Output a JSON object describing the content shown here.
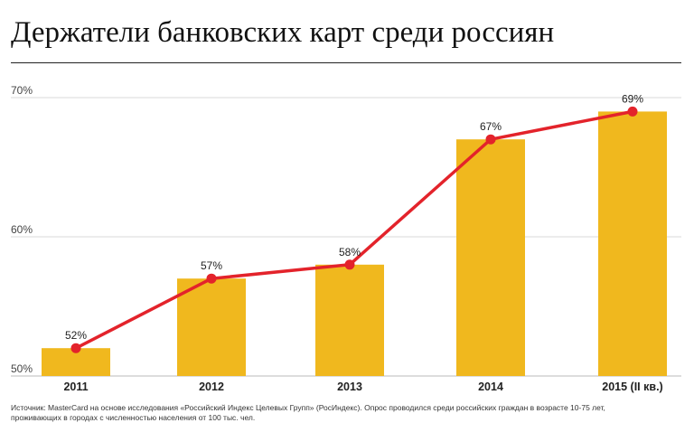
{
  "title": "Держатели банковских карт среди россиян",
  "footnote": {
    "line1": "Источник: MasterCard на основе исследования «Российский Индекс Целевых Групп» (РосИндекс). Опрос проводился среди российских граждан в возрасте 10-75 лет,",
    "line2": "проживающих в городах с численностью населения от 100 тыс. чел."
  },
  "chart_data": {
    "type": "bar+line",
    "title": "Держатели банковских карт среди россиян",
    "categories": [
      "2011",
      "2012",
      "2013",
      "2014",
      "2015 (II кв.)"
    ],
    "values": [
      52,
      57,
      58,
      67,
      69
    ],
    "data_labels": [
      "52%",
      "57%",
      "58%",
      "67%",
      "69%"
    ],
    "ylim": [
      50,
      70
    ],
    "yticks": [
      50,
      60,
      70
    ],
    "ytick_labels": [
      "50%",
      "60%",
      "70%"
    ],
    "grid": true,
    "colors": {
      "bar": "#F0B81E",
      "line": "#E3232B",
      "grid": "#d9d9d9"
    }
  }
}
